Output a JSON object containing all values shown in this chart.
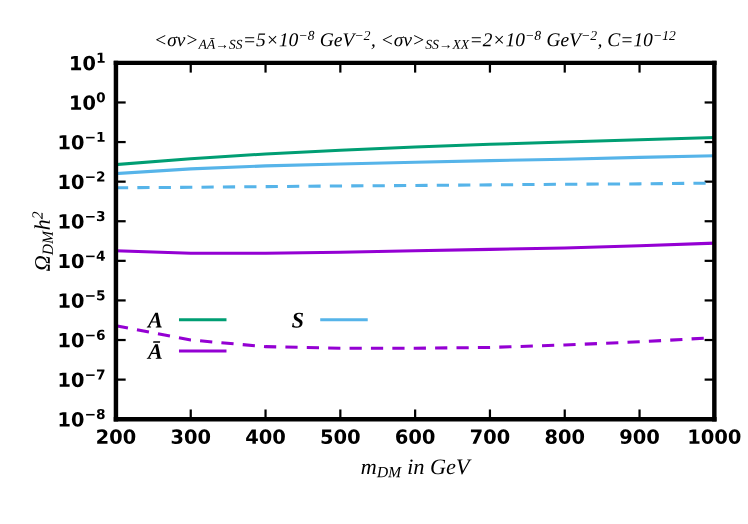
{
  "chart_data": {
    "type": "line",
    "title": "<σv>$_{AĀ→SS}$=5×10$^{−8}$ GeV$^{−2}$, <σv>$_{SS→XX}$=2×10$^{−8}$ GeV$^{−2}$, C=10$^{−12}$",
    "xlabel": "m$_{DM}$ in GeV",
    "ylabel": "Ω$_{DM}$h$^{2}$",
    "x": [
      200,
      300,
      400,
      500,
      600,
      700,
      800,
      900,
      1000
    ],
    "series": [
      {
        "name": "A",
        "color": "#009e73",
        "values": [
          0.027,
          0.038,
          0.05,
          0.062,
          0.075,
          0.088,
          0.1,
          0.115,
          0.13
        ]
      },
      {
        "name": "Ā",
        "color": "#9400d3",
        "values": [
          0.00018,
          0.000155,
          0.000155,
          0.000165,
          0.00018,
          0.000195,
          0.00021,
          0.00024,
          0.00028
        ]
      },
      {
        "name": "S",
        "color": "#56b4e9",
        "values": [
          0.016,
          0.021,
          0.025,
          0.028,
          0.031,
          0.034,
          0.037,
          0.041,
          0.045
        ]
      },
      {
        "color": "#56b4e9",
        "line_style": "dashed",
        "values": [
          0.007,
          0.0072,
          0.0075,
          0.0078,
          0.008,
          0.0083,
          0.0086,
          0.0088,
          0.0092
        ]
      },
      {
        "color": "#9400d3",
        "line_style": "dashed",
        "values": [
          2.3e-06,
          1e-06,
          6.8e-07,
          6.2e-07,
          6.2e-07,
          6.5e-07,
          7.5e-07,
          9e-07,
          1.15e-06
        ]
      }
    ],
    "log": "y",
    "xlim": [
      200,
      1000
    ],
    "xticks": [
      200,
      300,
      400,
      500,
      600,
      700,
      800,
      900,
      1000
    ],
    "ylim": [
      1e-08,
      10
    ],
    "yticks": [
      {
        "value": 1e-08,
        "label": "10$^{−8}$"
      },
      {
        "value": 1e-07,
        "label": "10$^{−7}$"
      },
      {
        "value": 1e-06,
        "label": "10$^{−6}$"
      },
      {
        "value": 1e-05,
        "label": "10$^{−5}$"
      },
      {
        "value": 0.0001,
        "label": "10$^{−4}$"
      },
      {
        "value": 0.001,
        "label": "10$^{−3}$"
      },
      {
        "value": 0.01,
        "label": "10$^{−2}$"
      },
      {
        "value": 0.1,
        "label": "10$^{−1}$"
      },
      {
        "value": 1,
        "label": "10$^{0}$"
      },
      {
        "value": 10,
        "label": "10$^{1}$"
      }
    ],
    "grid": false,
    "legend": "bottom left",
    "line_style": "solid"
  }
}
